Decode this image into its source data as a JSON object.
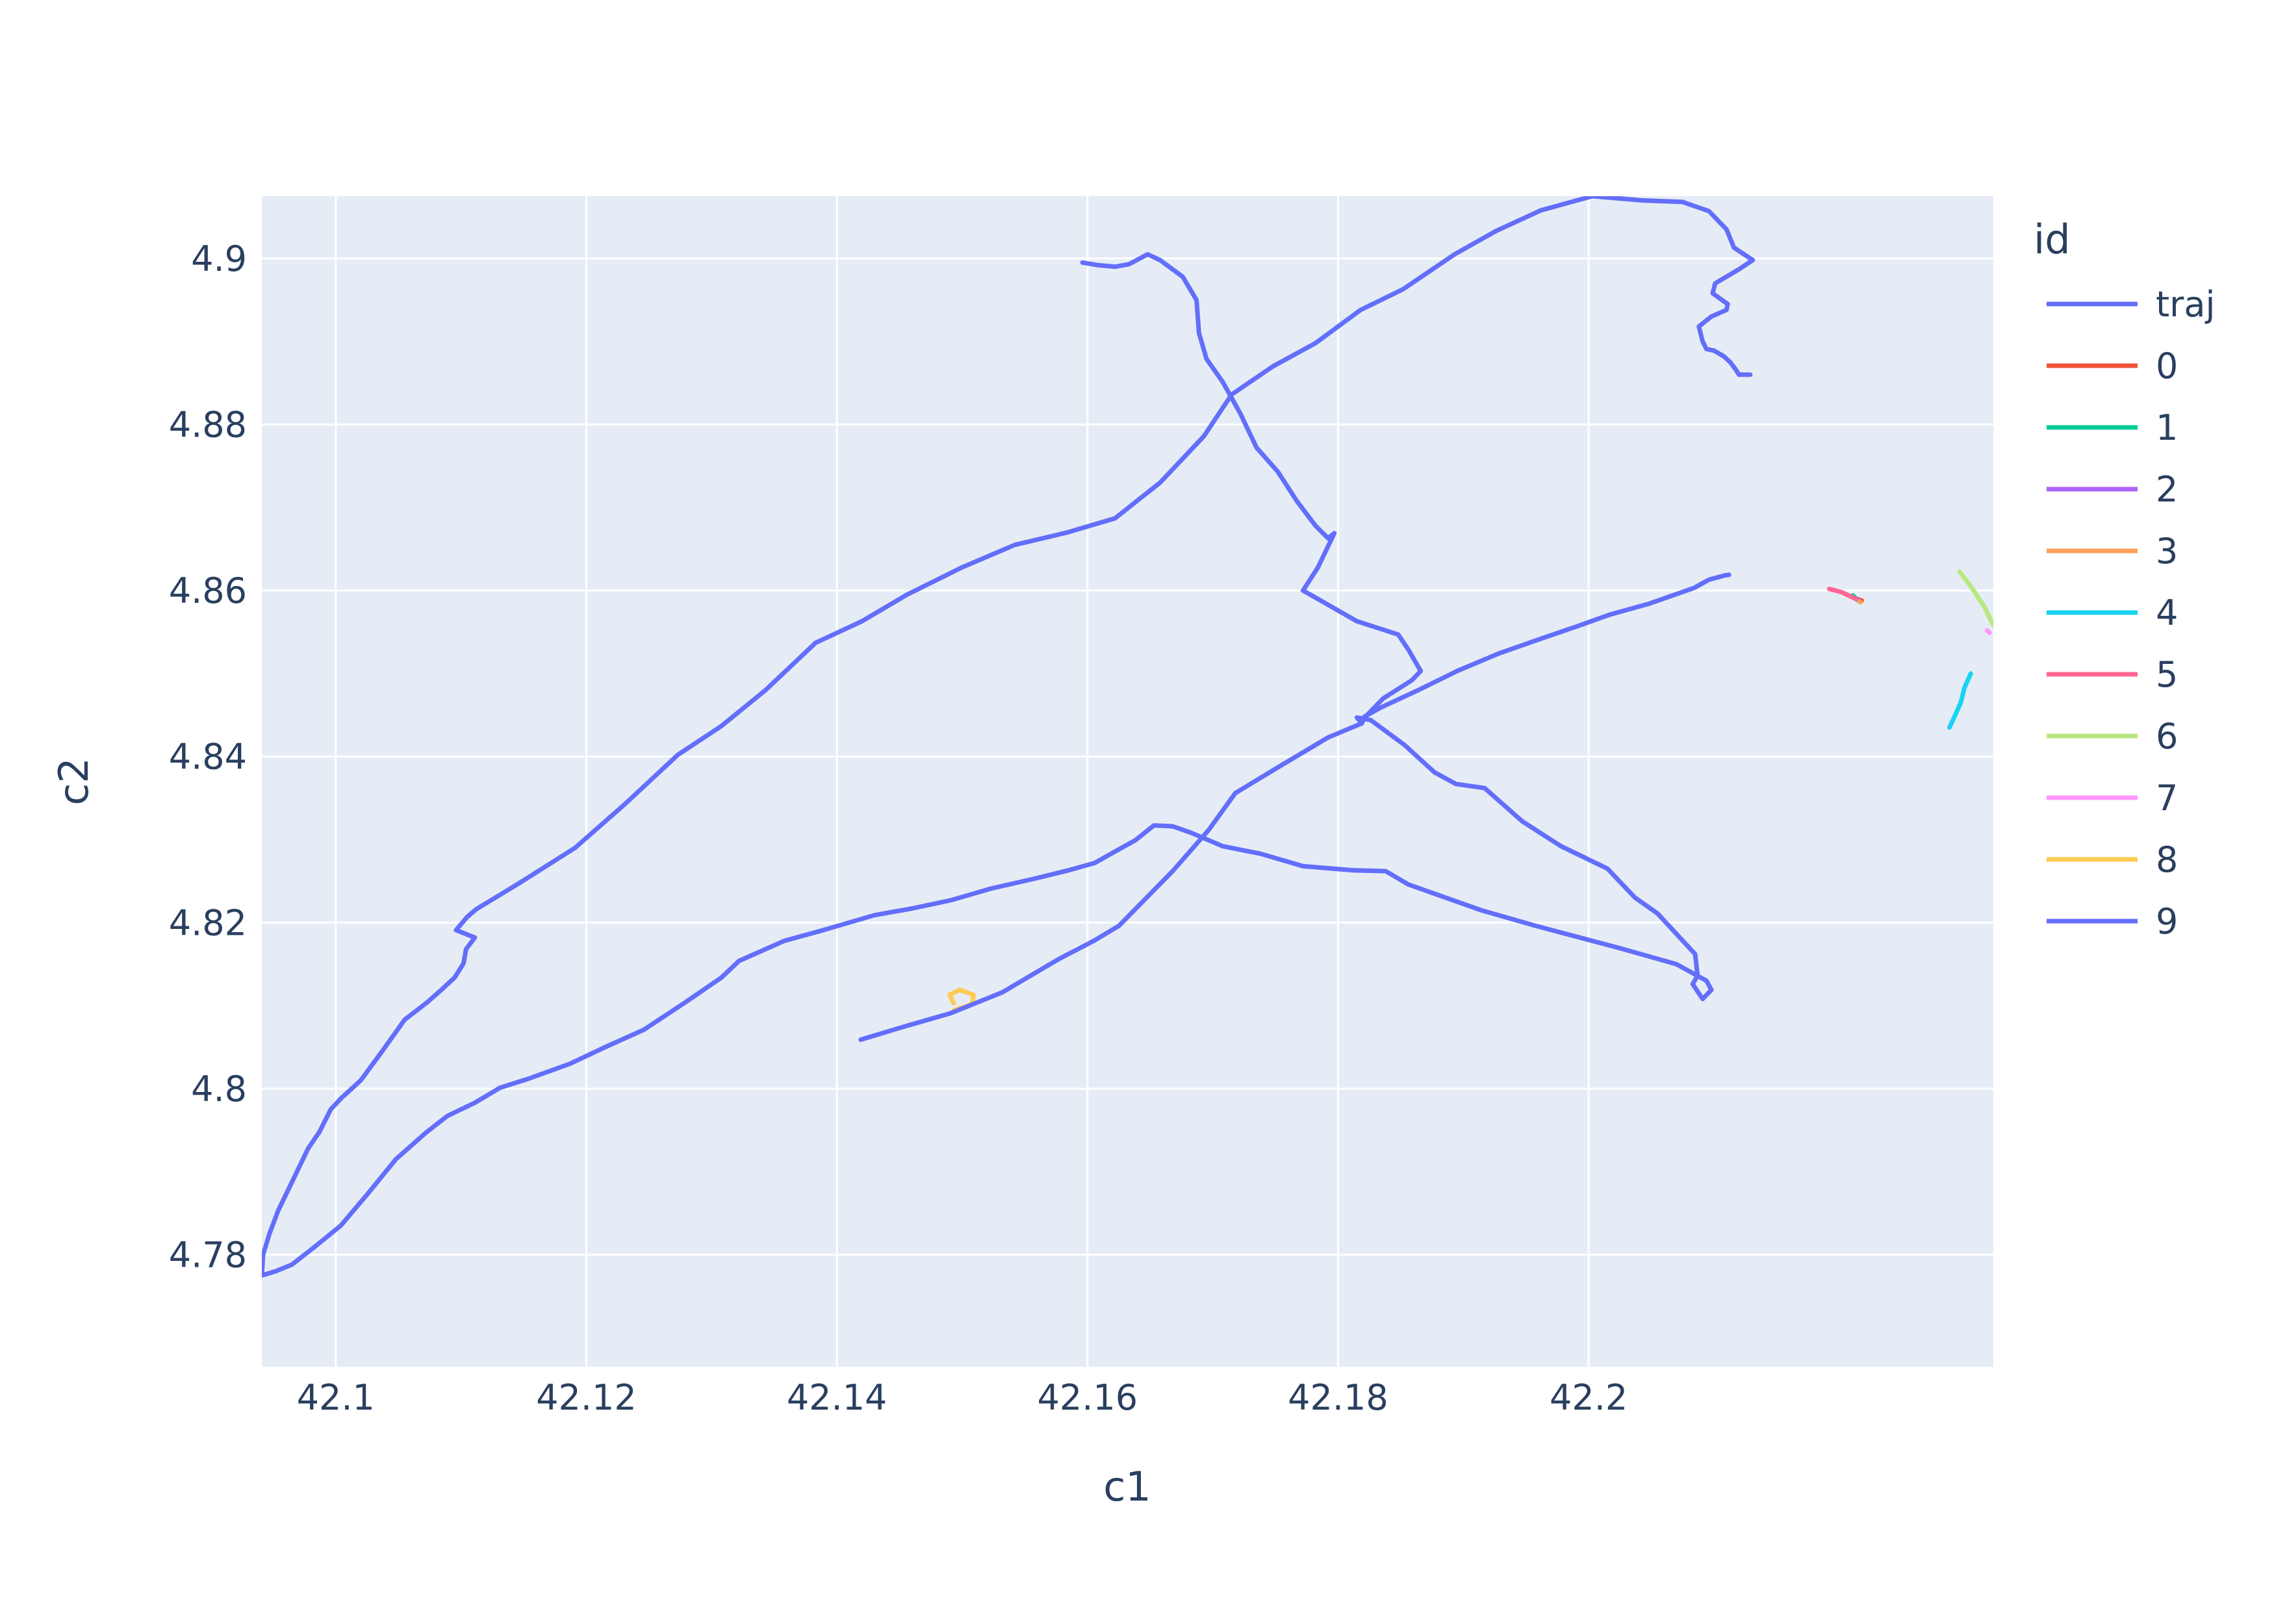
{
  "chart_data": {
    "type": "line",
    "xlabel": "c1",
    "ylabel": "c2",
    "xlim": [
      42.0941,
      42.2323
    ],
    "ylim": [
      4.7665,
      4.9075
    ],
    "x_ticks": [
      42.1,
      42.12,
      42.14,
      42.16,
      42.18,
      42.2
    ],
    "x_tick_labels": [
      "42.1",
      "42.12",
      "42.14",
      "42.16",
      "42.18",
      "42.2"
    ],
    "y_ticks": [
      4.78,
      4.8,
      4.82,
      4.84,
      4.86,
      4.88,
      4.9
    ],
    "y_tick_labels": [
      "4.78",
      "4.8",
      "4.82",
      "4.84",
      "4.86",
      "4.88",
      "4.9"
    ],
    "grid": true,
    "plot_background": "#e5ecf6",
    "legend": {
      "title": "id",
      "placement": "right"
    },
    "series": [
      {
        "name": "traj",
        "color": "#636efa",
        "x": [
          42.1596,
          42.1608,
          42.1622,
          42.1633,
          42.1648,
          42.1658,
          42.1676,
          42.1687,
          42.1689,
          42.1695,
          42.1708,
          42.1722,
          42.1735,
          42.1752,
          42.1767,
          42.1782,
          42.1792,
          42.1797,
          42.1784,
          42.1772,
          42.1786,
          42.1815,
          42.1848,
          42.1856,
          42.1866,
          42.1859,
          42.1836,
          42.1818,
          42.1815,
          42.1826,
          42.1853,
          42.1877,
          42.1894,
          42.1917,
          42.1947,
          42.1978,
          42.2015,
          42.2037,
          42.2055,
          42.2085,
          42.2087,
          42.2083,
          42.2091,
          42.2098,
          42.2094,
          42.207,
          42.2023,
          42.1958,
          42.1914,
          42.1886,
          42.1856,
          42.1838,
          42.1812,
          42.1772,
          42.1738,
          42.1708,
          42.1683,
          42.1668,
          42.1653,
          42.1638,
          42.162,
          42.1606,
          42.1585,
          42.1558,
          42.1523,
          42.1491,
          42.146,
          42.143,
          42.1387,
          42.1358,
          42.1322,
          42.1308,
          42.128,
          42.1246,
          42.1215,
          42.1187,
          42.1154,
          42.1131,
          42.1111,
          42.1089,
          42.1072,
          42.1048,
          42.1027,
          42.1004,
          42.0982,
          42.0965,
          42.0952,
          42.0941,
          42.0942,
          42.0947,
          42.0954,
          42.0962,
          42.097,
          42.0978,
          42.0987,
          42.0991,
          42.0996,
          42.1004,
          42.102,
          42.1037,
          42.1055,
          42.1073,
          42.1085,
          42.1095,
          42.1102,
          42.1104,
          42.1111,
          42.1096,
          42.1105,
          42.1112,
          42.1148,
          42.1191,
          42.1231,
          42.1273,
          42.1308,
          42.1343,
          42.1383,
          42.142,
          42.1456,
          42.15,
          42.1542,
          42.1584,
          42.1622,
          42.1658,
          42.1693,
          42.1715,
          42.1748,
          42.1782,
          42.1818,
          42.1852,
          42.1893,
          42.1926,
          42.1962,
          42.2003,
          42.2042,
          42.2075,
          42.2096,
          42.211,
          42.2116,
          42.2131,
          42.212,
          42.2101,
          42.2099,
          42.2111,
          42.211,
          42.2098,
          42.2088,
          42.2091,
          42.2094,
          42.21,
          42.2108,
          42.2113,
          42.2117,
          42.212,
          42.2129
        ],
        "y": [
          4.8995,
          4.8992,
          4.899,
          4.8993,
          4.9005,
          4.8998,
          4.8978,
          4.895,
          4.891,
          4.8879,
          4.8851,
          4.8813,
          4.8772,
          4.8743,
          4.8708,
          4.8678,
          4.8663,
          4.8669,
          4.8628,
          4.86,
          4.8588,
          4.8563,
          4.8547,
          4.8529,
          4.8503,
          4.8492,
          4.847,
          4.8442,
          4.8447,
          4.8444,
          4.8414,
          4.8381,
          4.8367,
          4.8362,
          4.8322,
          4.8292,
          4.8265,
          4.823,
          4.8211,
          4.8162,
          4.8136,
          4.8126,
          4.8108,
          4.8119,
          4.813,
          4.815,
          4.817,
          4.8196,
          4.8215,
          4.823,
          4.8246,
          4.8262,
          4.8263,
          4.8268,
          4.8283,
          4.8292,
          4.8308,
          4.8316,
          4.8317,
          4.8299,
          4.8284,
          4.8272,
          4.8263,
          4.8253,
          4.8241,
          4.8227,
          4.8217,
          4.8209,
          4.819,
          4.8178,
          4.8154,
          4.8134,
          4.8105,
          4.8071,
          4.805,
          4.803,
          4.8012,
          4.8001,
          4.7983,
          4.7967,
          4.7947,
          4.7915,
          4.7876,
          4.7835,
          4.7808,
          4.7788,
          4.778,
          4.7775,
          4.78,
          4.7825,
          4.7853,
          4.7878,
          4.7903,
          4.7928,
          4.7948,
          4.796,
          4.7975,
          4.7988,
          4.801,
          4.8045,
          4.8083,
          4.8104,
          4.812,
          4.8134,
          4.8151,
          4.8168,
          4.8182,
          4.8191,
          4.8207,
          4.8216,
          4.8249,
          4.829,
          4.8343,
          4.8402,
          4.8437,
          4.848,
          4.8537,
          4.8563,
          4.8595,
          4.8628,
          4.8655,
          4.867,
          4.8687,
          4.873,
          4.8786,
          4.8836,
          4.887,
          4.8898,
          4.8938,
          4.8963,
          4.9005,
          4.9033,
          4.9058,
          4.9075,
          4.907,
          4.9068,
          4.9057,
          4.9035,
          4.9013,
          4.8998,
          4.8987,
          4.897,
          4.8958,
          4.8945,
          4.8938,
          4.893,
          4.8918,
          4.89,
          4.8891,
          4.8889,
          4.8882,
          4.8875,
          4.8867,
          4.886,
          4.886
        ]
      },
      {
        "name": "0",
        "color": "#ef553b",
        "x": [
          42.2212,
          42.2218
        ],
        "y": [
          4.8591,
          4.8588
        ]
      },
      {
        "name": "1",
        "color": "#00cc96",
        "x": [
          42.2211,
          42.2214
        ],
        "y": [
          4.8594,
          4.8589
        ]
      },
      {
        "name": "2",
        "color": "#ab63fa",
        "x": [
          42.2215,
          42.2216
        ],
        "y": [
          4.8589,
          4.8587
        ]
      },
      {
        "name": "3",
        "color": "#ffa15a",
        "x": [
          42.2216,
          42.2217
        ],
        "y": [
          4.8587,
          4.8586
        ]
      },
      {
        "name": "4",
        "color": "#19d3f3",
        "x": [
          42.2288,
          42.2292,
          42.2297,
          42.23,
          42.2305
        ],
        "y": [
          4.8435,
          4.8448,
          4.8465,
          4.8483,
          4.85
        ]
      },
      {
        "name": "5",
        "color": "#ff6692",
        "x": [
          42.2192,
          42.2202,
          42.2213
        ],
        "y": [
          4.8602,
          4.8598,
          4.859
        ]
      },
      {
        "name": "6",
        "color": "#b6e880",
        "x": [
          42.2296,
          42.2306,
          42.2316,
          42.2323
        ],
        "y": [
          4.8623,
          4.8603,
          4.858,
          4.8558
        ]
      },
      {
        "name": "7",
        "color": "#ff97ff",
        "x": [
          42.2318,
          42.232
        ],
        "y": [
          4.8552,
          4.8549
        ]
      },
      {
        "name": "8",
        "color": "#fecb52",
        "x": [
          42.1493,
          42.1508,
          42.1509,
          42.1498,
          42.149,
          42.1493
        ],
        "y": [
          4.8094,
          4.8102,
          4.8113,
          4.8119,
          4.8113,
          4.8103
        ]
      },
      {
        "name": "9",
        "color": "#636efa",
        "x": [
          42.1419,
          42.1452,
          42.1491,
          42.1532,
          42.1577,
          42.1605,
          42.1625,
          42.1668,
          42.1697,
          42.1718,
          42.1752,
          42.1792,
          42.1819,
          42.1821,
          42.1834,
          42.1864,
          42.1895,
          42.1928,
          42.1962,
          42.1993,
          42.2017,
          42.2048,
          42.2084,
          42.2096,
          42.2106,
          42.2108,
          42.2112
        ],
        "y": [
          4.8059,
          4.8074,
          4.8091,
          4.8116,
          4.8156,
          4.8178,
          4.8196,
          4.8262,
          4.8312,
          4.8356,
          4.8387,
          4.8423,
          4.844,
          4.8448,
          4.8459,
          4.848,
          4.8503,
          4.8524,
          4.8542,
          4.8558,
          4.8571,
          4.8584,
          4.8603,
          4.8613,
          4.8617,
          4.8618,
          4.8619
        ]
      }
    ]
  }
}
